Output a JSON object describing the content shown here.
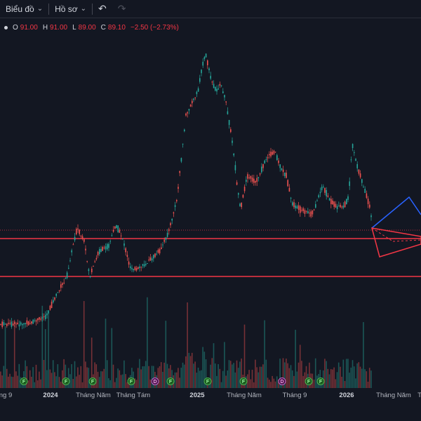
{
  "toolbar": {
    "chart_label": "Biểu đồ",
    "profile_label": "Hồ sơ",
    "undo_icon": "undo-icon",
    "redo_icon": "redo-icon"
  },
  "ohlc": {
    "o_key": "O",
    "o_val": "91.00",
    "h_key": "H",
    "h_val": "91.00",
    "l_key": "L",
    "l_val": "89.00",
    "c_key": "C",
    "c_val": "89.10",
    "change": "−2.50 (−2.73%)"
  },
  "colors": {
    "background": "#131722",
    "up": "#26a69a",
    "down": "#ef5350",
    "level_line": "#f23645",
    "projection_up": "#2962ff",
    "projection_down": "#f23645"
  },
  "xaxis": {
    "labels": [
      {
        "text": "ng 9",
        "year": false
      },
      {
        "text": "2024",
        "year": true
      },
      {
        "text": "Tháng Năm",
        "year": false
      },
      {
        "text": "Tháng Tám",
        "year": false
      },
      {
        "text": "2025",
        "year": true
      },
      {
        "text": "Tháng Năm",
        "year": false
      },
      {
        "text": "Tháng 9",
        "year": false
      },
      {
        "text": "2026",
        "year": true
      },
      {
        "text": "Tháng Năm",
        "year": false
      },
      {
        "text": "T",
        "year": false
      }
    ]
  },
  "events": [
    "F",
    "F",
    "F",
    "F",
    "D",
    "F",
    "F",
    "F",
    "D",
    "F",
    "F"
  ]
}
